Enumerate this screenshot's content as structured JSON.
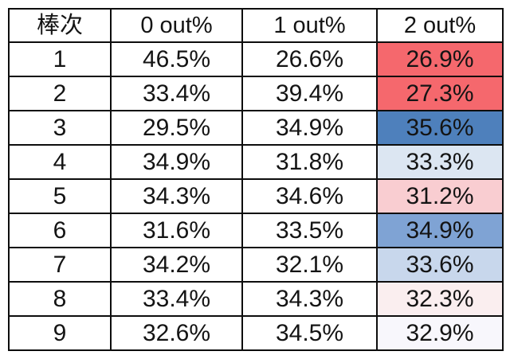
{
  "table": {
    "headers": [
      "棒次",
      "0 out%",
      "1 out%",
      "2 out%"
    ],
    "rows": [
      {
        "cells": [
          "1",
          "46.5%",
          "26.6%",
          "26.9%"
        ],
        "out2_color": "#f5686d"
      },
      {
        "cells": [
          "2",
          "33.4%",
          "39.4%",
          "27.3%"
        ],
        "out2_color": "#f5686d"
      },
      {
        "cells": [
          "3",
          "29.5%",
          "34.9%",
          "35.6%"
        ],
        "out2_color": "#4e80bc"
      },
      {
        "cells": [
          "4",
          "34.9%",
          "31.8%",
          "33.3%"
        ],
        "out2_color": "#dce6f2"
      },
      {
        "cells": [
          "5",
          "34.3%",
          "34.6%",
          "31.2%"
        ],
        "out2_color": "#f9cdd1"
      },
      {
        "cells": [
          "6",
          "31.6%",
          "33.5%",
          "34.9%"
        ],
        "out2_color": "#7fa3d4"
      },
      {
        "cells": [
          "7",
          "34.2%",
          "32.1%",
          "33.6%"
        ],
        "out2_color": "#c8d7ec"
      },
      {
        "cells": [
          "8",
          "33.4%",
          "34.3%",
          "32.3%"
        ],
        "out2_color": "#faeeef"
      },
      {
        "cells": [
          "9",
          "32.6%",
          "34.5%",
          "32.9%"
        ],
        "out2_color": "#f8f7fc"
      }
    ]
  },
  "chart_data": {
    "type": "table",
    "title": "",
    "columns": [
      "棒次",
      "0 out%",
      "1 out%",
      "2 out%"
    ],
    "rows": [
      [
        "1",
        "46.5%",
        "26.6%",
        "26.9%"
      ],
      [
        "2",
        "33.4%",
        "39.4%",
        "27.3%"
      ],
      [
        "3",
        "29.5%",
        "34.9%",
        "35.6%"
      ],
      [
        "4",
        "34.9%",
        "31.8%",
        "33.3%"
      ],
      [
        "5",
        "34.3%",
        "34.6%",
        "31.2%"
      ],
      [
        "6",
        "31.6%",
        "33.5%",
        "34.9%"
      ],
      [
        "7",
        "34.2%",
        "32.1%",
        "33.6%"
      ],
      [
        "8",
        "33.4%",
        "34.3%",
        "32.3%"
      ],
      [
        "9",
        "32.6%",
        "34.5%",
        "32.9%"
      ]
    ],
    "conditional_formatting": {
      "column": "2 out%",
      "scale": "red (low) to blue (high)",
      "cell_colors": [
        "#f5686d",
        "#f5686d",
        "#4e80bc",
        "#dce6f2",
        "#f9cdd1",
        "#7fa3d4",
        "#c8d7ec",
        "#faeeef",
        "#f8f7fc"
      ]
    },
    "layout": {
      "grid": true,
      "text_color": "#141414",
      "border_color": "#0d0d0d"
    }
  }
}
